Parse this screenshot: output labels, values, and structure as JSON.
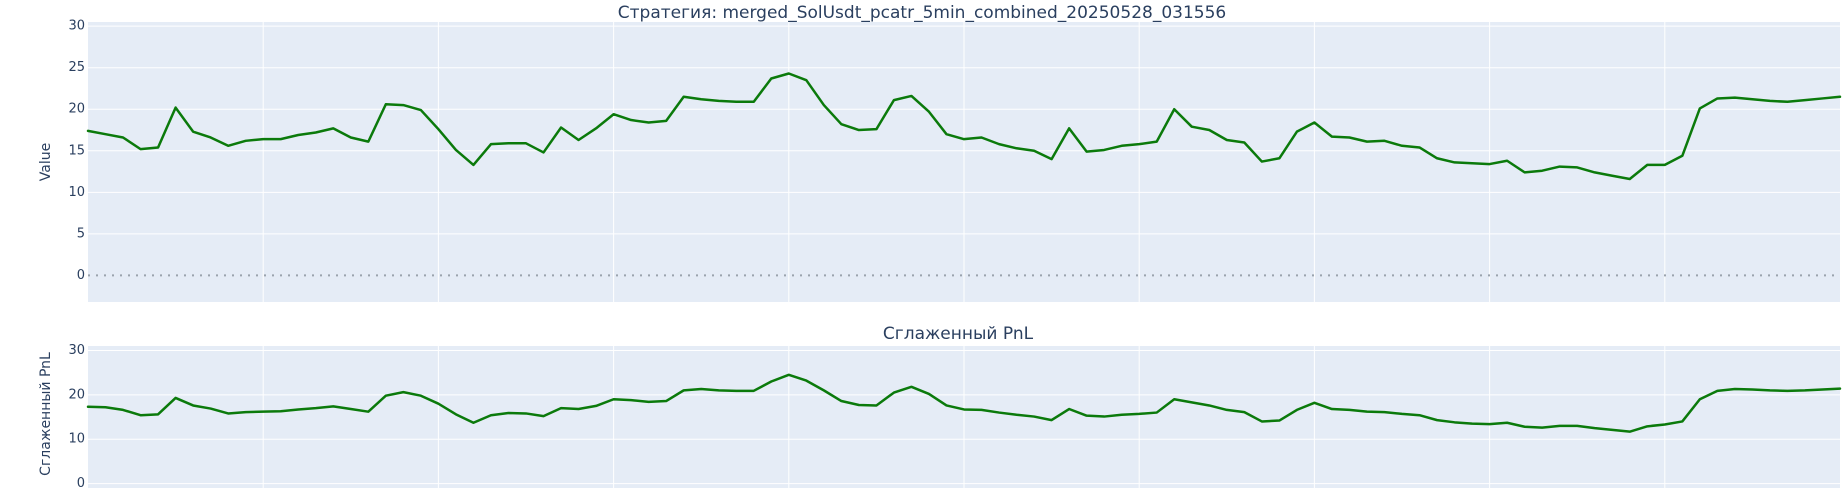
{
  "chart_data": [
    {
      "type": "line",
      "title": "Стратегия: merged_SolUsdt_pcatr_5min_combined_20250528_031556",
      "xlabel": "",
      "ylabel": "Value",
      "xlim": [
        0,
        100
      ],
      "ylim": [
        -3.2,
        30.5
      ],
      "yticks": [
        0,
        5,
        10,
        15,
        20,
        25,
        30
      ],
      "grid": true,
      "reference_line": {
        "y": 0,
        "style": "dotted"
      },
      "series": [
        {
          "color": "#0b7a0b",
          "x": [
            0,
            1,
            2,
            3,
            4,
            5,
            6,
            7,
            8,
            9,
            10,
            11,
            12,
            13,
            14,
            15,
            16,
            17,
            18,
            19,
            20,
            21,
            22,
            23,
            24,
            25,
            26,
            27,
            28,
            29,
            30,
            31,
            32,
            33,
            34,
            35,
            36,
            37,
            38,
            39,
            40,
            41,
            42,
            43,
            44,
            45,
            46,
            47,
            48,
            49,
            50,
            51,
            52,
            53,
            54,
            55,
            56,
            57,
            58,
            59,
            60,
            61,
            62,
            63,
            64,
            65,
            66,
            67,
            68,
            69,
            70,
            71,
            72,
            73,
            74,
            75,
            76,
            77,
            78,
            79,
            80,
            81,
            82,
            83,
            84,
            85,
            86,
            87,
            88,
            89,
            90,
            91,
            92,
            93,
            94,
            95,
            96,
            97,
            98,
            99,
            100
          ],
          "values": [
            17.4,
            17.0,
            16.6,
            15.2,
            15.4,
            20.2,
            17.3,
            16.6,
            15.6,
            16.2,
            16.4,
            16.4,
            16.9,
            17.2,
            17.7,
            16.6,
            16.1,
            20.6,
            20.5,
            19.9,
            17.6,
            15.1,
            13.3,
            15.8,
            15.9,
            15.9,
            14.8,
            17.8,
            16.3,
            17.7,
            19.4,
            18.7,
            18.4,
            18.6,
            21.5,
            21.2,
            21.0,
            20.9,
            20.9,
            23.7,
            24.3,
            23.5,
            20.5,
            18.2,
            17.5,
            17.6,
            21.1,
            21.6,
            19.7,
            17.0,
            16.4,
            16.6,
            15.8,
            15.3,
            15.0,
            14.0,
            17.7,
            14.9,
            15.1,
            15.6,
            15.8,
            16.1,
            20.0,
            17.9,
            17.5,
            16.3,
            16.0,
            13.7,
            14.1,
            17.3,
            18.4,
            16.7,
            16.6,
            16.1,
            16.2,
            15.6,
            15.4,
            14.1,
            13.6,
            13.5,
            13.4,
            13.8,
            12.4,
            12.6,
            13.1,
            13.0,
            12.4,
            12.0,
            11.6,
            13.3,
            13.3,
            14.4,
            20.1,
            21.3,
            21.4,
            21.2,
            21.0,
            20.9,
            21.1,
            21.3,
            21.5
          ]
        }
      ]
    },
    {
      "type": "line",
      "title": "Сглаженный PnL",
      "xlabel": "",
      "ylabel": "Сглаженный PnL",
      "xlim": [
        0,
        100
      ],
      "ylim": [
        -1,
        31
      ],
      "yticks": [
        0,
        10,
        20,
        30
      ],
      "grid": true,
      "series": [
        {
          "color": "#0b7a0b",
          "x": [
            0,
            1,
            2,
            3,
            4,
            5,
            6,
            7,
            8,
            9,
            10,
            11,
            12,
            13,
            14,
            15,
            16,
            17,
            18,
            19,
            20,
            21,
            22,
            23,
            24,
            25,
            26,
            27,
            28,
            29,
            30,
            31,
            32,
            33,
            34,
            35,
            36,
            37,
            38,
            39,
            40,
            41,
            42,
            43,
            44,
            45,
            46,
            47,
            48,
            49,
            50,
            51,
            52,
            53,
            54,
            55,
            56,
            57,
            58,
            59,
            60,
            61,
            62,
            63,
            64,
            65,
            66,
            67,
            68,
            69,
            70,
            71,
            72,
            73,
            74,
            75,
            76,
            77,
            78,
            79,
            80,
            81,
            82,
            83,
            84,
            85,
            86,
            87,
            88,
            89,
            90,
            91,
            92,
            93,
            94,
            95,
            96,
            97,
            98,
            99,
            100
          ],
          "values": [
            17.3,
            17.2,
            16.6,
            15.4,
            15.6,
            19.3,
            17.6,
            16.9,
            15.8,
            16.1,
            16.2,
            16.3,
            16.7,
            17.0,
            17.4,
            16.8,
            16.2,
            19.8,
            20.6,
            19.8,
            18.0,
            15.6,
            13.7,
            15.4,
            15.9,
            15.8,
            15.2,
            17.0,
            16.8,
            17.5,
            19.0,
            18.8,
            18.4,
            18.6,
            21.0,
            21.3,
            21.0,
            20.9,
            20.9,
            23.0,
            24.5,
            23.2,
            21.0,
            18.6,
            17.7,
            17.6,
            20.5,
            21.8,
            20.2,
            17.6,
            16.7,
            16.6,
            16.0,
            15.5,
            15.1,
            14.3,
            16.8,
            15.3,
            15.1,
            15.5,
            15.7,
            16.0,
            19.0,
            18.3,
            17.6,
            16.6,
            16.1,
            14.0,
            14.2,
            16.6,
            18.2,
            16.8,
            16.6,
            16.2,
            16.1,
            15.7,
            15.4,
            14.3,
            13.8,
            13.5,
            13.4,
            13.7,
            12.8,
            12.6,
            13.0,
            13.0,
            12.5,
            12.1,
            11.7,
            12.9,
            13.3,
            14.0,
            19.0,
            20.9,
            21.3,
            21.2,
            21.0,
            20.9,
            21.0,
            21.2,
            21.4
          ]
        }
      ]
    }
  ]
}
